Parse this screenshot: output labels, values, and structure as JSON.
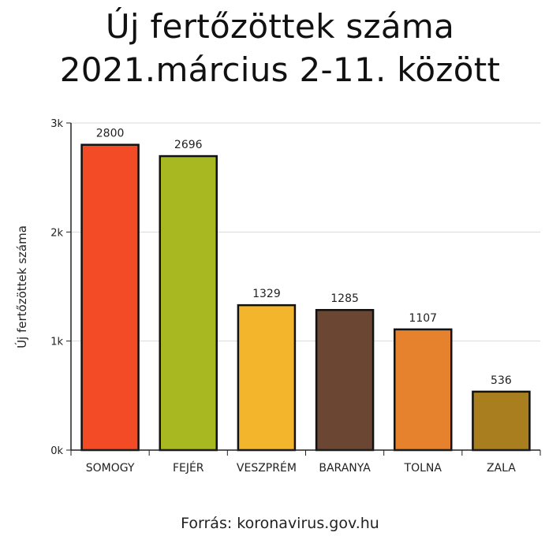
{
  "title_line1": "Új fertőzöttek száma",
  "title_line2": "2021.március 2-11. között",
  "source": "Forrás: koronavirus.gov.hu",
  "chart_data": {
    "type": "bar",
    "title": "Új fertőzöttek száma 2021.március 2-11. között",
    "xlabel": "",
    "ylabel": "Új fertőzöttek száma",
    "ylim": [
      0,
      3000
    ],
    "yticks": [
      0,
      1000,
      2000,
      3000
    ],
    "ytick_labels": [
      "0k",
      "1k",
      "2k",
      "3k"
    ],
    "grid": true,
    "categories": [
      "SOMOGY",
      "FEJÉR",
      "VESZPRÉM",
      "BARANYA",
      "TOLNA",
      "ZALA"
    ],
    "values": [
      2800,
      2696,
      1329,
      1285,
      1107,
      536
    ],
    "value_labels": [
      "2800",
      "2696",
      "1329",
      "1285",
      "1107",
      "536"
    ],
    "colors": [
      "#f44b27",
      "#a8b820",
      "#f2b52c",
      "#6b4632",
      "#e6812e",
      "#a97e1f"
    ]
  }
}
